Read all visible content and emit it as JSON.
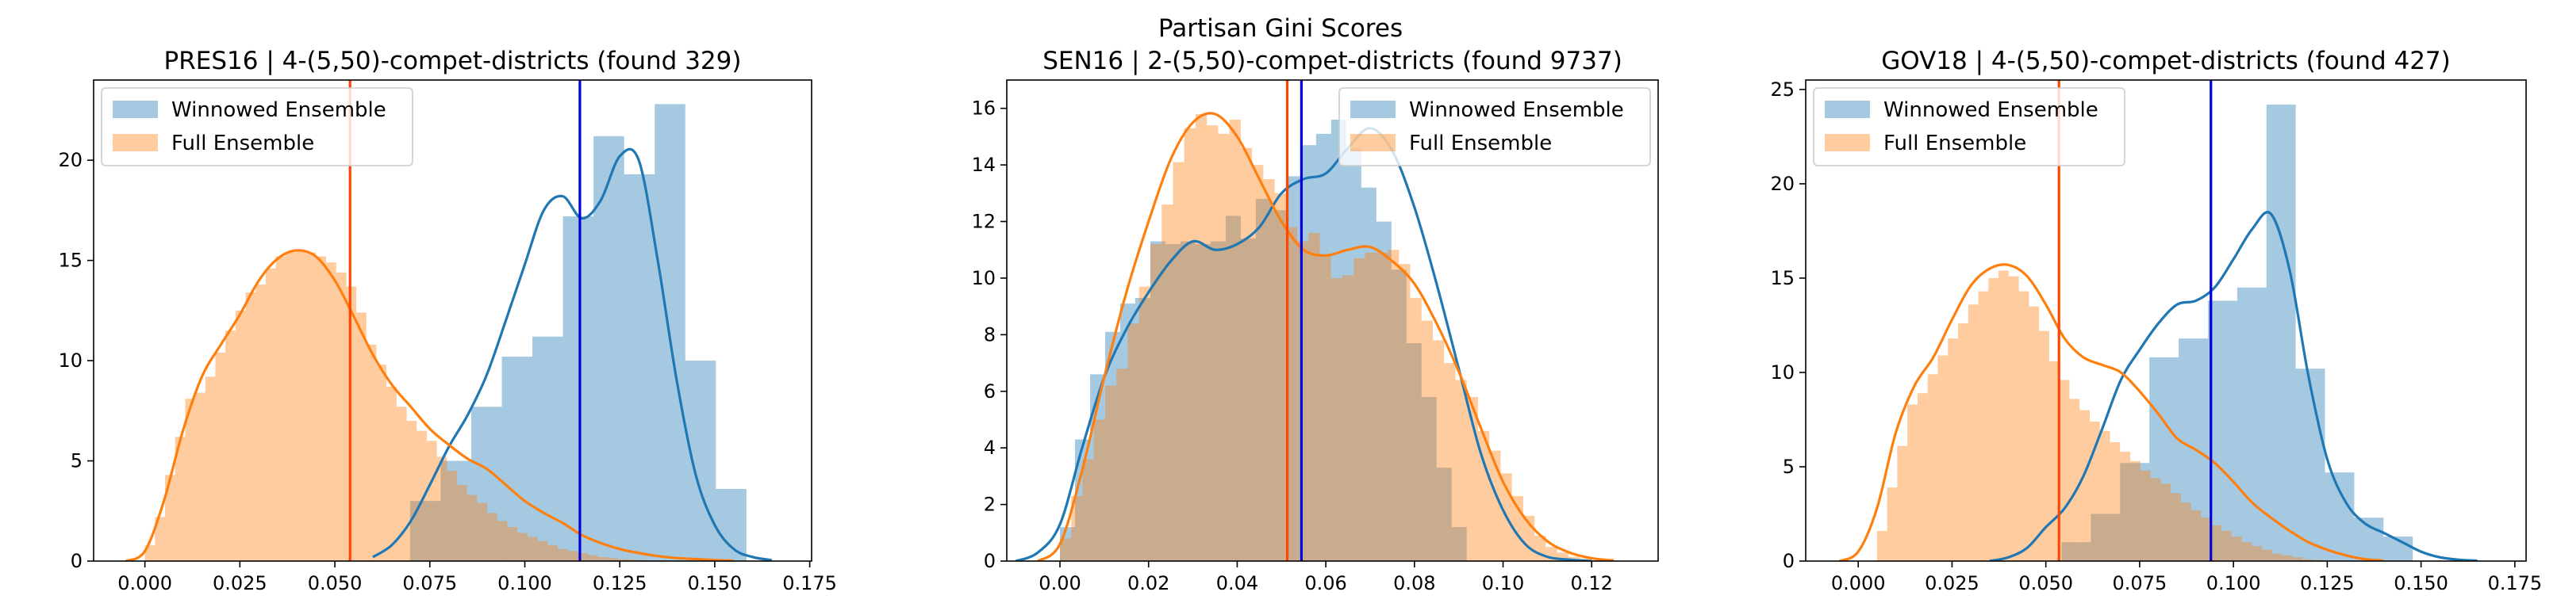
{
  "suptitle": "Partisan Gini Scores",
  "colors": {
    "winnowed_bar": "#1f77b4",
    "winnowed_line": "#1f77b4",
    "full_bar": "#ff7f0e",
    "full_line": "#ff7f0e",
    "winnowed_vline": "#0000dd",
    "full_vline": "#ff4500"
  },
  "chart_data": [
    {
      "type": "histogram",
      "title": "PRES16 | 4-(5,50)-compet-districts (found 329)",
      "xlim": [
        -0.0135,
        0.1755
      ],
      "ylim": [
        0,
        24
      ],
      "xticks": [
        0.0,
        0.025,
        0.05,
        0.075,
        0.1,
        0.125,
        0.15,
        0.175
      ],
      "xtick_labels": [
        "0.000",
        "0.025",
        "0.050",
        "0.075",
        "0.100",
        "0.125",
        "0.150",
        "0.175"
      ],
      "yticks": [
        0,
        5,
        10,
        15,
        20
      ],
      "ytick_labels": [
        "0",
        "5",
        "10",
        "15",
        "20"
      ],
      "legend_position": "upper-left",
      "series": [
        {
          "name": "Full Ensemble",
          "bin_start": 0.0,
          "bin_width": 0.00265,
          "values": [
            0.8,
            2.2,
            4.3,
            6.2,
            8.1,
            8.4,
            9.2,
            10.4,
            11.5,
            12.5,
            13.4,
            13.8,
            14.6,
            15.2,
            15.4,
            15.5,
            15.4,
            15.2,
            14.9,
            14.4,
            13.7,
            12.4,
            10.8,
            9.8,
            8.7,
            7.7,
            7.0,
            6.5,
            6.0,
            5.2,
            4.5,
            3.8,
            3.3,
            2.9,
            2.4,
            2.0,
            1.7,
            1.4,
            1.2,
            1.0,
            0.8,
            0.6,
            0.5,
            0.4,
            0.3,
            0.2,
            0.15,
            0.1,
            0.08,
            0.05,
            0.04,
            0.03,
            0.02,
            0.02,
            0.01,
            0.01,
            0.01
          ]
        },
        {
          "name": "Winnowed Ensemble",
          "bin_start": 0.0698,
          "bin_width": 0.00805,
          "values": [
            3.0,
            5.0,
            7.7,
            10.2,
            11.2,
            17.2,
            21.2,
            19.3,
            22.8,
            10.0,
            3.6
          ]
        }
      ],
      "kde": {
        "full": {
          "x": [
            -0.005,
            0.0,
            0.005,
            0.01,
            0.015,
            0.02,
            0.025,
            0.03,
            0.035,
            0.04,
            0.045,
            0.05,
            0.055,
            0.06,
            0.065,
            0.07,
            0.075,
            0.08,
            0.085,
            0.09,
            0.095,
            0.1,
            0.105,
            0.11,
            0.115,
            0.12,
            0.125,
            0.13,
            0.135,
            0.14,
            0.145,
            0.15,
            0.155
          ],
          "y": [
            0.0,
            0.5,
            3.0,
            6.5,
            9.2,
            10.8,
            12.3,
            14.0,
            15.1,
            15.5,
            15.2,
            14.0,
            12.2,
            10.3,
            8.8,
            7.7,
            6.6,
            5.8,
            5.1,
            4.6,
            3.8,
            3.0,
            2.4,
            1.9,
            1.3,
            0.9,
            0.6,
            0.4,
            0.25,
            0.15,
            0.1,
            0.05,
            0.02
          ]
        },
        "winnowed": {
          "x": [
            0.06,
            0.065,
            0.07,
            0.075,
            0.08,
            0.085,
            0.09,
            0.095,
            0.1,
            0.105,
            0.11,
            0.115,
            0.12,
            0.125,
            0.13,
            0.135,
            0.14,
            0.145,
            0.15,
            0.155,
            0.16,
            0.165
          ],
          "y": [
            0.2,
            0.8,
            2.0,
            3.8,
            5.7,
            7.3,
            9.3,
            12.0,
            14.8,
            17.5,
            18.2,
            17.1,
            18.0,
            20.2,
            20.0,
            15.0,
            9.0,
            4.3,
            1.8,
            0.6,
            0.2,
            0.05
          ]
        }
      },
      "vlines": {
        "full_mean": 0.054,
        "winnowed_mean": 0.1145
      }
    },
    {
      "type": "histogram",
      "title": "SEN16 | 2-(5,50)-compet-districts (found 9737)",
      "xlim": [
        -0.012,
        0.135
      ],
      "ylim": [
        0,
        17
      ],
      "xticks": [
        0.0,
        0.02,
        0.04,
        0.06,
        0.08,
        0.1,
        0.12
      ],
      "xtick_labels": [
        "0.00",
        "0.02",
        "0.04",
        "0.06",
        "0.08",
        "0.10",
        "0.12"
      ],
      "yticks": [
        0,
        2,
        4,
        6,
        8,
        10,
        12,
        14,
        16
      ],
      "ytick_labels": [
        "0",
        "2",
        "4",
        "6",
        "8",
        "10",
        "12",
        "14",
        "16"
      ],
      "legend_position": "upper-right",
      "series": [
        {
          "name": "Full Ensemble",
          "bin_start": 0.0,
          "bin_width": 0.00255,
          "values": [
            0.8,
            2.3,
            3.6,
            5.0,
            6.2,
            6.8,
            8.4,
            9.7,
            11.2,
            12.6,
            14.1,
            15.3,
            15.8,
            15.4,
            15.1,
            15.6,
            14.6,
            14.0,
            13.5,
            13.0,
            11.8,
            11.3,
            11.6,
            10.8,
            10.0,
            10.1,
            10.7,
            10.9,
            10.9,
            11.0,
            10.5,
            9.3,
            8.5,
            7.8,
            7.0,
            6.4,
            5.8,
            4.6,
            3.9,
            3.1,
            2.3,
            1.6,
            0.9,
            0.5,
            0.3,
            0.15,
            0.08,
            0.03
          ]
        },
        {
          "name": "Winnowed Ensemble",
          "bin_start": 0.0,
          "bin_width": 0.0034,
          "values": [
            1.2,
            4.3,
            6.6,
            8.1,
            9.1,
            9.3,
            11.3,
            11.2,
            11.3,
            11.2,
            11.3,
            12.2,
            11.4,
            12.8,
            12.4,
            13.6,
            14.7,
            15.1,
            15.6,
            14.6,
            13.2,
            12.0,
            10.3,
            7.7,
            5.8,
            3.3,
            1.2
          ]
        }
      ],
      "kde": {
        "full": {
          "x": [
            -0.005,
            0.0,
            0.005,
            0.01,
            0.015,
            0.02,
            0.025,
            0.03,
            0.035,
            0.04,
            0.045,
            0.05,
            0.055,
            0.06,
            0.065,
            0.07,
            0.075,
            0.08,
            0.085,
            0.09,
            0.095,
            0.1,
            0.105,
            0.11,
            0.115,
            0.12,
            0.125
          ],
          "y": [
            0.0,
            0.6,
            3.2,
            6.5,
            9.5,
            12.0,
            14.2,
            15.5,
            15.8,
            15.0,
            13.5,
            12.0,
            11.0,
            10.8,
            11.0,
            11.1,
            10.6,
            9.8,
            8.4,
            6.7,
            4.7,
            2.8,
            1.5,
            0.7,
            0.3,
            0.1,
            0.02
          ]
        },
        "winnowed": {
          "x": [
            -0.01,
            -0.005,
            0.0,
            0.005,
            0.01,
            0.015,
            0.02,
            0.025,
            0.03,
            0.035,
            0.04,
            0.045,
            0.05,
            0.055,
            0.06,
            0.065,
            0.07,
            0.075,
            0.08,
            0.085,
            0.09,
            0.095,
            0.1,
            0.105,
            0.11,
            0.115,
            0.12
          ],
          "y": [
            0.0,
            0.3,
            1.3,
            4.0,
            6.5,
            8.2,
            9.5,
            10.6,
            11.3,
            11.0,
            11.2,
            11.8,
            13.0,
            13.5,
            13.7,
            14.6,
            15.3,
            14.5,
            12.5,
            9.8,
            6.8,
            3.8,
            1.8,
            0.6,
            0.15,
            0.05,
            0.0
          ]
        }
      },
      "vlines": {
        "full_mean": 0.0513,
        "winnowed_mean": 0.0545
      }
    },
    {
      "type": "histogram",
      "title": "GOV18 | 4-(5,50)-compet-districts (found 427)",
      "xlim": [
        -0.014,
        0.178
      ],
      "ylim": [
        0,
        25.5
      ],
      "xticks": [
        0.0,
        0.025,
        0.05,
        0.075,
        0.1,
        0.125,
        0.15,
        0.175
      ],
      "xtick_labels": [
        "0.000",
        "0.025",
        "0.050",
        "0.075",
        "0.100",
        "0.125",
        "0.150",
        "0.175"
      ],
      "yticks": [
        0,
        5,
        10,
        15,
        20,
        25
      ],
      "ytick_labels": [
        "0",
        "5",
        "10",
        "15",
        "20",
        "25"
      ],
      "legend_position": "upper-left",
      "series": [
        {
          "name": "Full Ensemble",
          "bin_start": 0.005,
          "bin_width": 0.0027,
          "values": [
            1.6,
            3.9,
            6.1,
            8.3,
            8.9,
            9.9,
            10.9,
            11.8,
            12.6,
            13.6,
            14.3,
            15.0,
            15.4,
            15.1,
            14.3,
            13.5,
            12.2,
            10.6,
            9.6,
            8.6,
            8.0,
            7.4,
            6.9,
            6.3,
            5.8,
            5.3,
            4.8,
            4.4,
            4.1,
            3.6,
            3.1,
            2.7,
            2.3,
            1.9,
            1.6,
            1.3,
            1.0,
            0.8,
            0.6,
            0.4,
            0.3,
            0.2,
            0.1,
            0.06,
            0.03,
            0.02,
            0.01
          ]
        },
        {
          "name": "Winnowed Ensemble",
          "bin_start": 0.0542,
          "bin_width": 0.0078,
          "values": [
            1.0,
            2.5,
            5.2,
            10.8,
            11.8,
            13.8,
            14.5,
            24.2,
            10.2,
            4.7,
            2.3,
            1.3
          ]
        }
      ],
      "kde": {
        "full": {
          "x": [
            -0.005,
            0.0,
            0.005,
            0.01,
            0.015,
            0.02,
            0.025,
            0.03,
            0.035,
            0.04,
            0.045,
            0.05,
            0.055,
            0.06,
            0.065,
            0.07,
            0.075,
            0.08,
            0.085,
            0.09,
            0.095,
            0.1,
            0.105,
            0.11,
            0.115,
            0.12,
            0.125,
            0.13,
            0.135,
            0.14
          ],
          "y": [
            0.0,
            0.5,
            2.8,
            6.8,
            9.3,
            10.8,
            12.8,
            14.6,
            15.5,
            15.7,
            15.1,
            13.6,
            11.8,
            10.8,
            10.4,
            10.0,
            9.0,
            7.8,
            6.5,
            5.9,
            5.2,
            4.2,
            3.1,
            2.3,
            1.6,
            1.0,
            0.6,
            0.3,
            0.1,
            0.03
          ]
        },
        "winnowed": {
          "x": [
            0.035,
            0.04,
            0.045,
            0.05,
            0.055,
            0.06,
            0.065,
            0.07,
            0.075,
            0.08,
            0.085,
            0.09,
            0.095,
            0.1,
            0.105,
            0.11,
            0.115,
            0.12,
            0.125,
            0.13,
            0.135,
            0.14,
            0.145,
            0.15,
            0.155,
            0.16,
            0.165
          ],
          "y": [
            0.0,
            0.2,
            0.7,
            1.8,
            2.8,
            4.5,
            7.0,
            9.6,
            11.2,
            12.6,
            13.6,
            13.8,
            14.5,
            16.0,
            17.6,
            18.4,
            15.4,
            9.8,
            5.4,
            3.1,
            2.0,
            1.5,
            1.0,
            0.5,
            0.2,
            0.07,
            0.02
          ]
        }
      },
      "vlines": {
        "full_mean": 0.0535,
        "winnowed_mean": 0.094
      }
    }
  ]
}
